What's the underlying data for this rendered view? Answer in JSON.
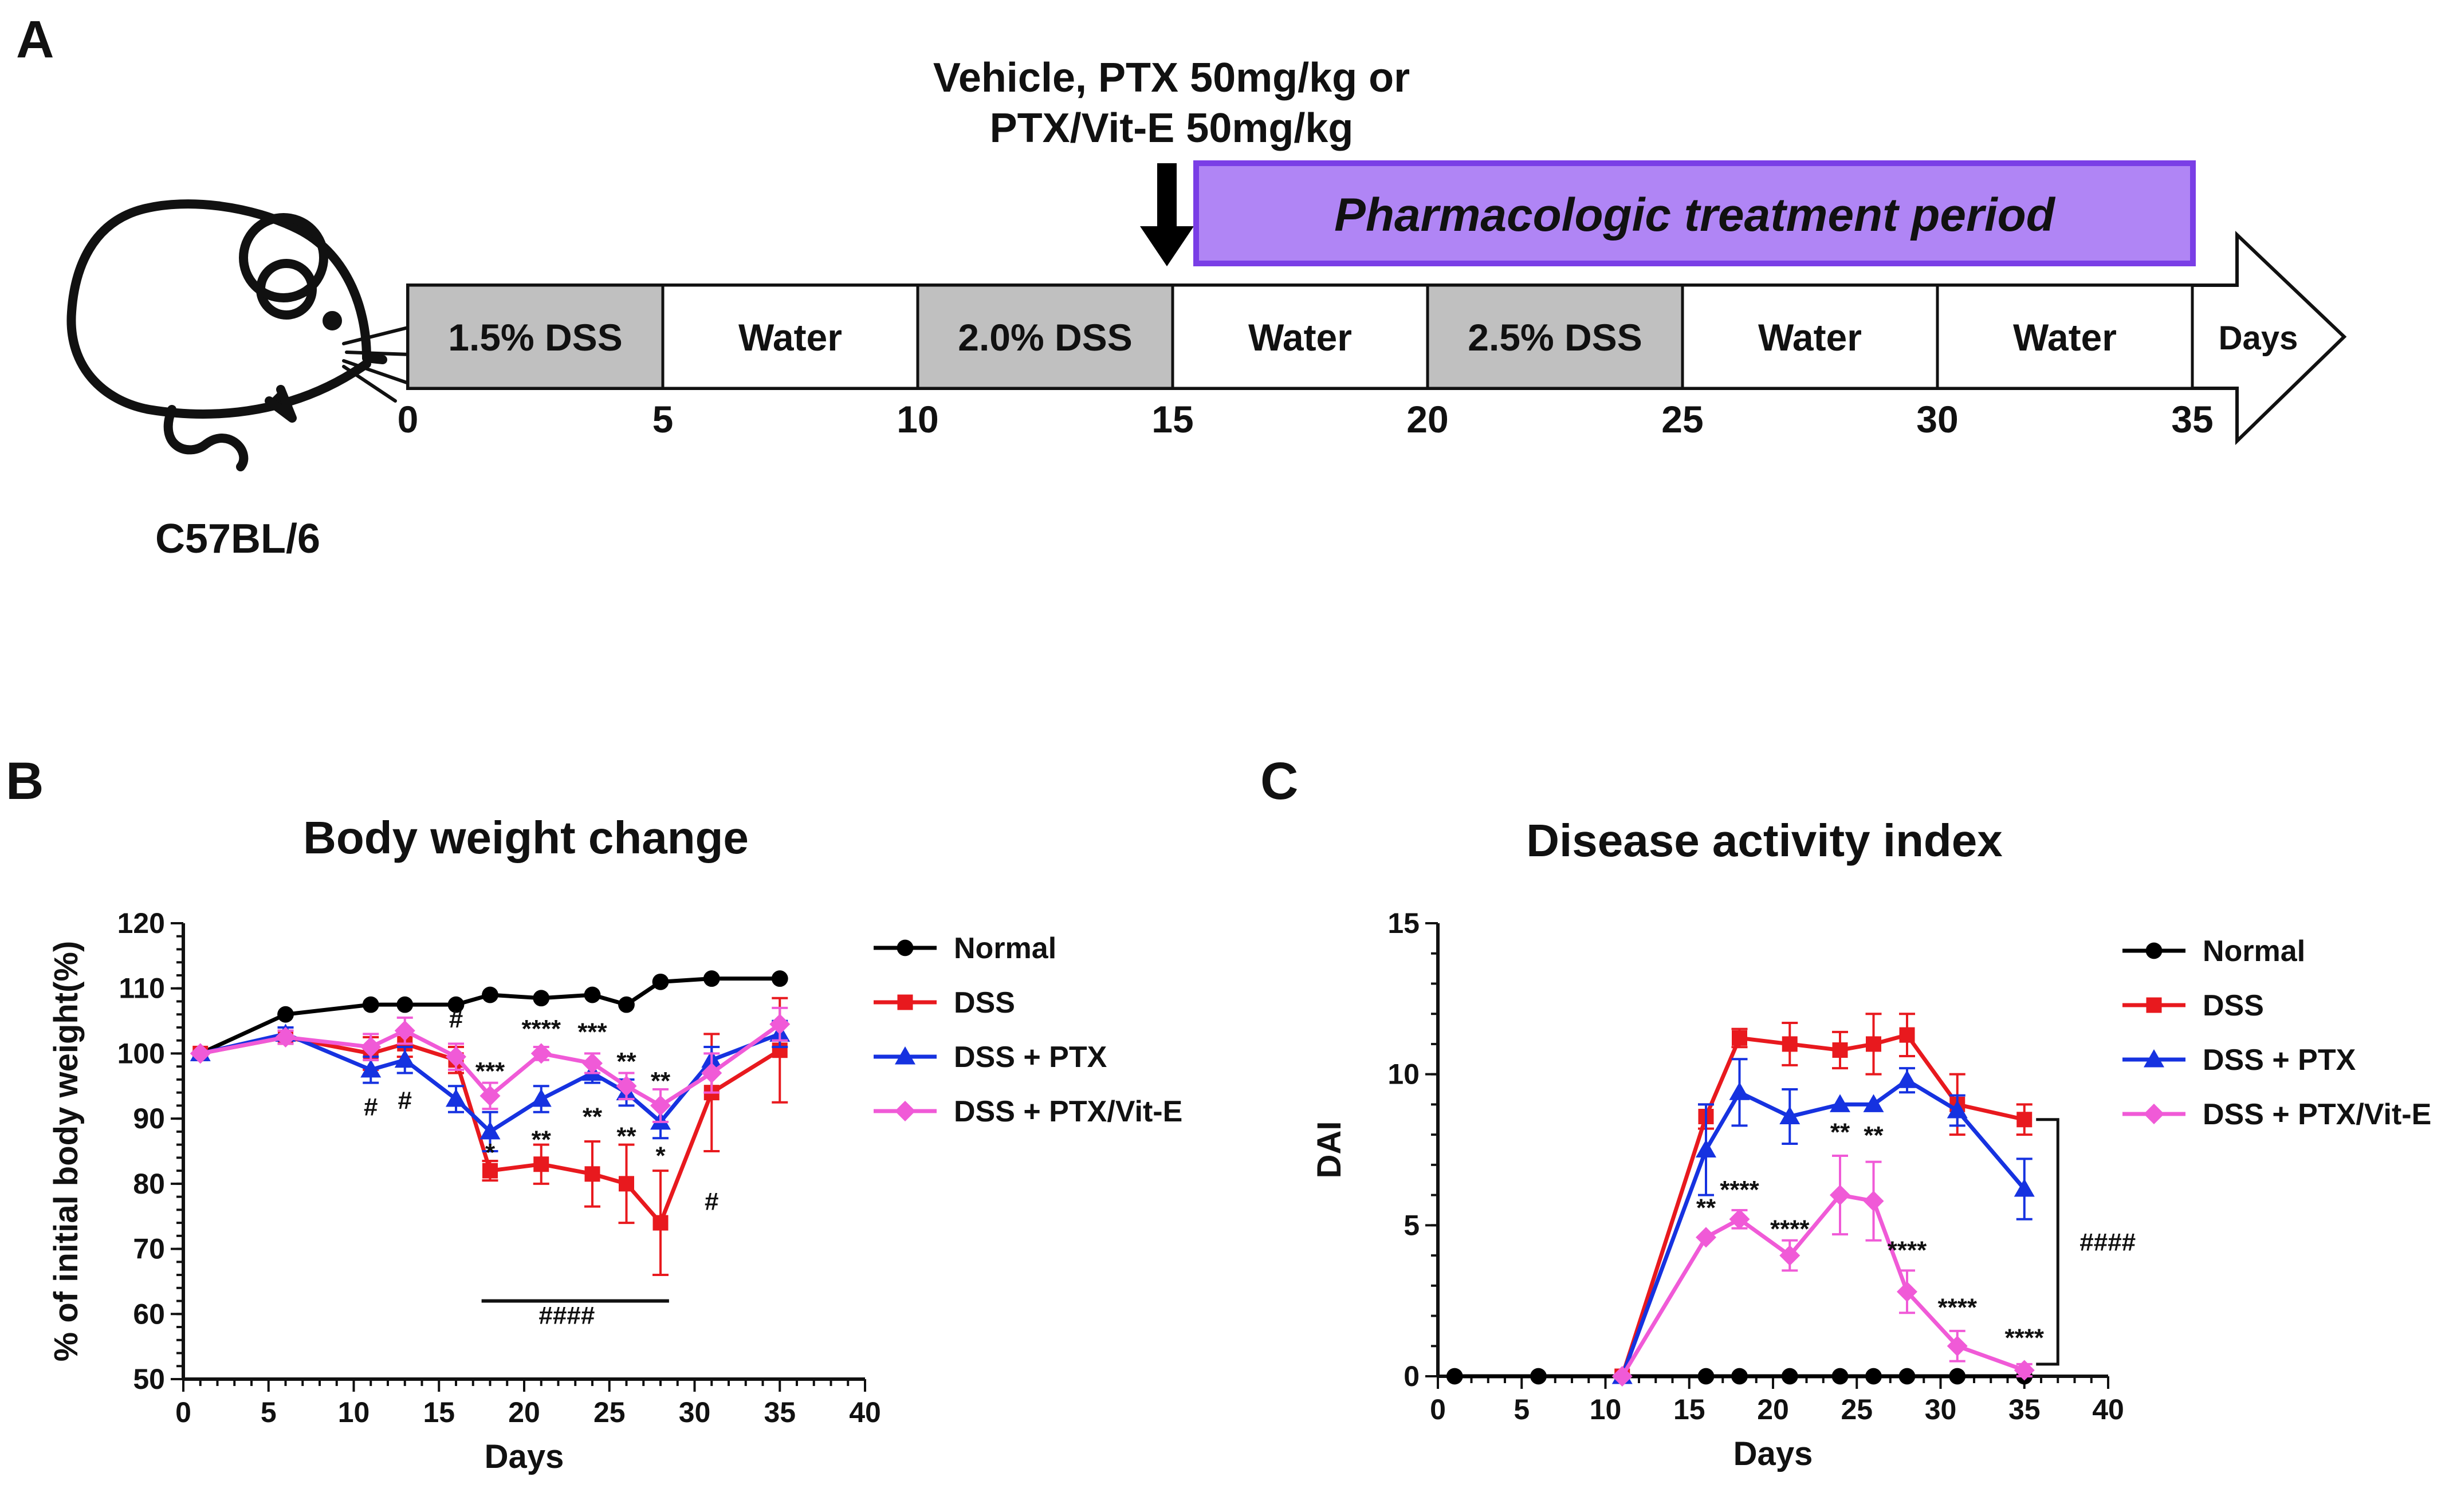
{
  "panel_a": {
    "letter": "A",
    "strain": "C57BL/6",
    "treatment_line1": "Vehicle, PTX 50mg/kg or",
    "treatment_line2": "PTX/Vit-E 50mg/kg",
    "period_label": "Pharmacologic treatment period",
    "period_color": "#b085f5",
    "period_border_color": "#7a3ee6",
    "dss_fill_color": "#c0c0c0",
    "segments": [
      {
        "label": "1.5% DSS",
        "shaded": true
      },
      {
        "label": "Water",
        "shaded": false
      },
      {
        "label": "2.0% DSS",
        "shaded": true
      },
      {
        "label": "Water",
        "shaded": false
      },
      {
        "label": "2.5% DSS",
        "shaded": true
      },
      {
        "label": "Water",
        "shaded": false
      },
      {
        "label": "Water",
        "shaded": false
      }
    ],
    "arrow_label": "Days",
    "day_ticks": [
      "0",
      "5",
      "10",
      "15",
      "20",
      "25",
      "30",
      "35"
    ]
  },
  "chart_data": [
    {
      "panel": "B",
      "type": "line",
      "title": "Body weight change",
      "xlabel": "Days",
      "ylabel": "% of initial body weight(%)",
      "xlim": [
        0,
        40
      ],
      "ylim": [
        50,
        120
      ],
      "xticks": [
        "0",
        "5",
        "10",
        "15",
        "20",
        "25",
        "30",
        "35",
        "40"
      ],
      "yticks": [
        "50",
        "60",
        "70",
        "80",
        "90",
        "100",
        "110",
        "120"
      ],
      "legend_position": "right",
      "series": [
        {
          "name": "Normal",
          "color": "#000000",
          "marker": "circle",
          "x": [
            1,
            6,
            11,
            13,
            16,
            18,
            21,
            24,
            26,
            28,
            31,
            35
          ],
          "y": [
            100,
            106,
            107.5,
            107.5,
            107.5,
            109,
            108.5,
            109,
            107.5,
            111,
            111.5,
            111.5
          ],
          "err": [
            0,
            0,
            0,
            0,
            0,
            0,
            0,
            0,
            0,
            0,
            0,
            0
          ]
        },
        {
          "name": "DSS",
          "color": "#e8191e",
          "marker": "square",
          "x": [
            1,
            6,
            11,
            13,
            16,
            18,
            21,
            24,
            26,
            28,
            31,
            35
          ],
          "y": [
            100,
            102.5,
            100,
            101.5,
            99,
            82,
            83,
            81.5,
            80,
            74,
            94,
            100.5
          ],
          "err": [
            0,
            1,
            2.5,
            2,
            2,
            1.5,
            3,
            5,
            6,
            8,
            9,
            8
          ]
        },
        {
          "name": "DSS + PTX",
          "color": "#1632e0",
          "marker": "triangle",
          "x": [
            1,
            6,
            11,
            13,
            16,
            18,
            21,
            24,
            26,
            28,
            31,
            35
          ],
          "y": [
            100,
            103,
            97.5,
            99,
            93,
            88,
            93,
            97,
            94,
            89.5,
            99,
            103
          ],
          "err": [
            0,
            1,
            2,
            2,
            2,
            3,
            2,
            1.5,
            2,
            2.5,
            2,
            2
          ]
        },
        {
          "name": "DSS + PTX/Vit-E",
          "color": "#f05ad7",
          "marker": "diamond",
          "x": [
            1,
            6,
            11,
            13,
            16,
            18,
            21,
            24,
            26,
            28,
            31,
            35
          ],
          "y": [
            100,
            102.5,
            101,
            103.5,
            99.5,
            93.5,
            100,
            98.5,
            95,
            92,
            97,
            104.5
          ],
          "err": [
            0,
            1,
            2,
            2,
            2,
            2,
            1,
            1.5,
            2,
            2.5,
            3,
            2.5
          ]
        }
      ],
      "annotations": [
        {
          "text": "#",
          "x": 11,
          "y": 90.5
        },
        {
          "text": "#",
          "x": 13,
          "y": 91.5
        },
        {
          "text": "#",
          "x": 16,
          "y": 104
        },
        {
          "text": "***",
          "x": 18,
          "y": 96
        },
        {
          "text": "****",
          "x": 21,
          "y": 102.5
        },
        {
          "text": "***",
          "x": 24,
          "y": 102
        },
        {
          "text": "**",
          "x": 26,
          "y": 97.5
        },
        {
          "text": "**",
          "x": 28,
          "y": 94.5
        },
        {
          "text": "**",
          "x": 21,
          "y": 85.5
        },
        {
          "text": "**",
          "x": 24,
          "y": 89
        },
        {
          "text": "**",
          "x": 26,
          "y": 86
        },
        {
          "text": "*",
          "x": 28,
          "y": 83
        },
        {
          "text": "*",
          "x": 18,
          "y": 83.5
        },
        {
          "text": "#",
          "x": 31,
          "y": 76
        },
        {
          "text": "####",
          "x": 22.5,
          "y": 58.5
        }
      ],
      "bracket": {
        "x_start": 17.5,
        "x_end": 28.5,
        "y": 62,
        "label": "####"
      }
    },
    {
      "panel": "C",
      "type": "line",
      "title": "Disease activity index",
      "xlabel": "Days",
      "ylabel": "DAI",
      "xlim": [
        0,
        40
      ],
      "ylim": [
        0,
        15
      ],
      "xticks": [
        "0",
        "5",
        "10",
        "15",
        "20",
        "25",
        "30",
        "35",
        "40"
      ],
      "yticks": [
        "0",
        "5",
        "10",
        "15"
      ],
      "legend_position": "right",
      "series": [
        {
          "name": "Normal",
          "color": "#000000",
          "marker": "circle",
          "x": [
            1,
            6,
            11,
            16,
            18,
            21,
            24,
            26,
            28,
            31,
            35
          ],
          "y": [
            0,
            0,
            0,
            0,
            0,
            0,
            0,
            0,
            0,
            0,
            0
          ],
          "err": [
            0,
            0,
            0,
            0,
            0,
            0,
            0,
            0,
            0,
            0,
            0
          ]
        },
        {
          "name": "DSS",
          "color": "#e8191e",
          "marker": "square",
          "x": [
            11,
            16,
            18,
            21,
            24,
            26,
            28,
            31,
            35
          ],
          "y": [
            0,
            8.6,
            11.2,
            11.0,
            10.8,
            11.0,
            11.3,
            9.0,
            8.5
          ],
          "err": [
            0,
            0.4,
            0.3,
            0.7,
            0.6,
            1.0,
            0.7,
            1.0,
            0.5
          ]
        },
        {
          "name": "DSS + PTX",
          "color": "#1632e0",
          "marker": "triangle",
          "x": [
            11,
            16,
            18,
            21,
            24,
            26,
            28,
            31,
            35
          ],
          "y": [
            0,
            7.5,
            9.4,
            8.6,
            9.0,
            9.0,
            9.8,
            8.8,
            6.2
          ],
          "err": [
            0,
            1.5,
            1.1,
            0.9,
            0,
            0,
            0.4,
            0.5,
            1.0
          ]
        },
        {
          "name": "DSS + PTX/Vit-E",
          "color": "#f05ad7",
          "marker": "diamond",
          "x": [
            11,
            16,
            18,
            21,
            24,
            26,
            28,
            31,
            35
          ],
          "y": [
            0,
            4.6,
            5.2,
            4.0,
            6.0,
            5.8,
            2.8,
            1.0,
            0.2
          ],
          "err": [
            0,
            0,
            0.3,
            0.5,
            1.3,
            1.3,
            0.7,
            0.5,
            0.2
          ]
        }
      ],
      "annotations": [
        {
          "text": "**",
          "x": 16,
          "y": 5.3
        },
        {
          "text": "****",
          "x": 18,
          "y": 5.9
        },
        {
          "text": "****",
          "x": 21,
          "y": 4.6
        },
        {
          "text": "**",
          "x": 24,
          "y": 7.8
        },
        {
          "text": "**",
          "x": 26,
          "y": 7.7
        },
        {
          "text": "****",
          "x": 28,
          "y": 3.9
        },
        {
          "text": "****",
          "x": 31,
          "y": 2.0
        },
        {
          "text": "****",
          "x": 35,
          "y": 1.0
        }
      ],
      "bracket": {
        "y_start": 8.5,
        "y_end": 0.4,
        "x": 37,
        "label": "####"
      }
    }
  ],
  "panel_b_letter": "B",
  "panel_c_letter": "C"
}
